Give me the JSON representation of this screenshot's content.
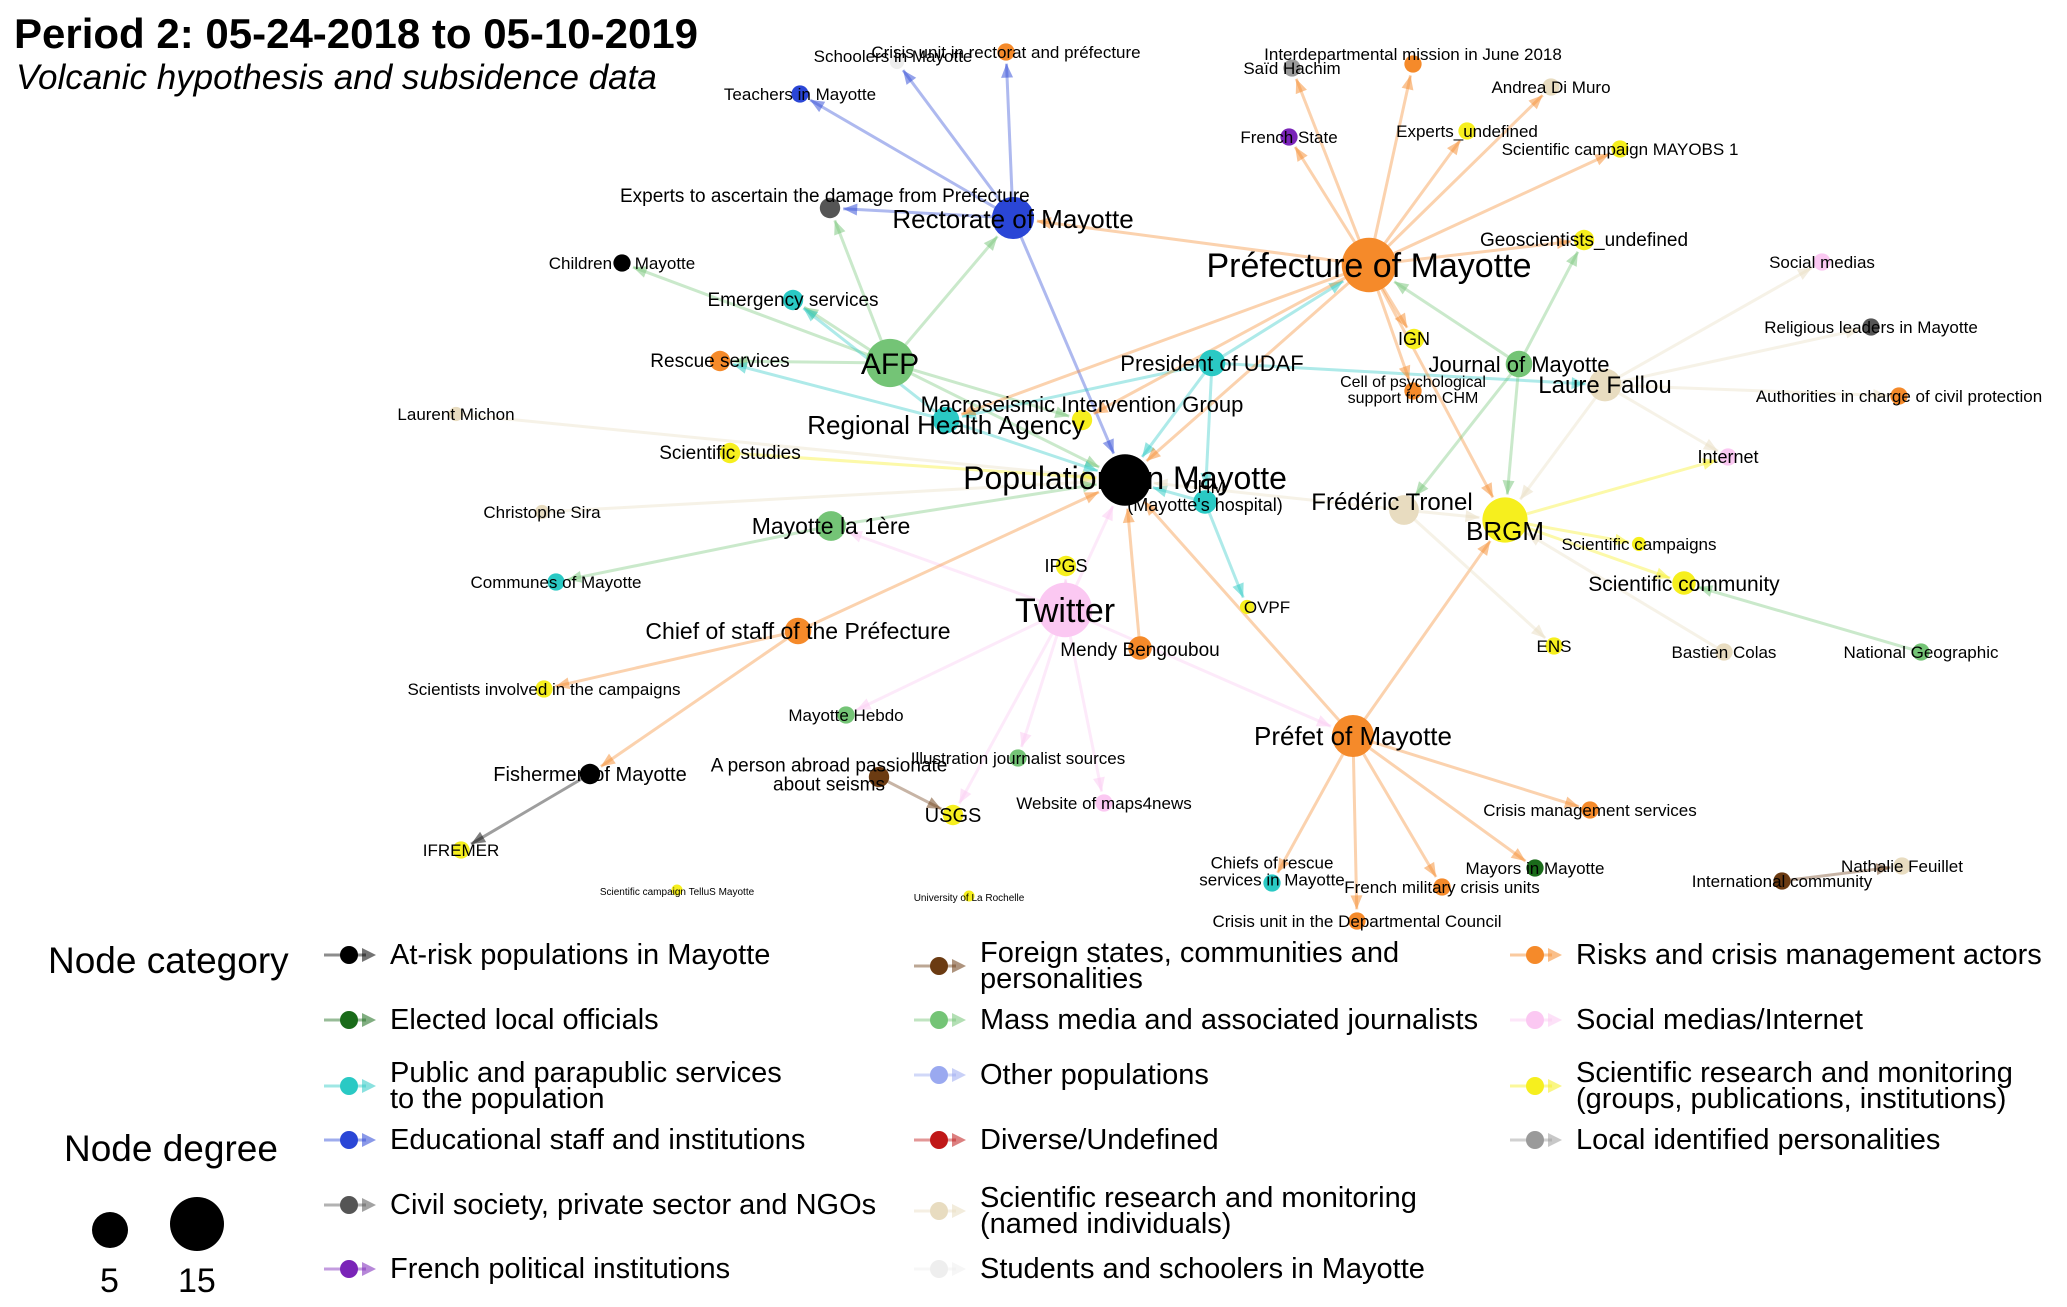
{
  "header": {
    "title": "Period 2: 05-24-2018 to 05-10-2019",
    "subtitle": "Volcanic hypothesis and subsidence data"
  },
  "categories": [
    {
      "id": "atrisk",
      "label": "At-risk populations in Mayotte",
      "color": "#000000"
    },
    {
      "id": "elected",
      "label": "Elected local officials",
      "color": "#1a6b1a"
    },
    {
      "id": "public",
      "label": "Public and parapublic services\nto the population",
      "color": "#2ac9c4"
    },
    {
      "id": "edu",
      "label": "Educational staff and institutions",
      "color": "#2a46d6"
    },
    {
      "id": "civil",
      "label": "Civil society, private sector and NGOs",
      "color": "#555555"
    },
    {
      "id": "polit",
      "label": "French political institutions",
      "color": "#7a24b8"
    },
    {
      "id": "foreign",
      "label": "Foreign states, communities and\npersonalities",
      "color": "#6b3b12"
    },
    {
      "id": "media",
      "label": "Mass media and associated journalists",
      "color": "#74c476"
    },
    {
      "id": "otherpop",
      "label": "Other populations",
      "color": "#9aa9f0"
    },
    {
      "id": "diverse",
      "label": "Diverse/Undefined",
      "color": "#c01818"
    },
    {
      "id": "sci_named",
      "label": "Scientific research and monitoring\n(named individuals)",
      "color": "#e8dcc0"
    },
    {
      "id": "students",
      "label": "Students and schoolers in Mayotte",
      "color": "#eeeeee"
    },
    {
      "id": "risk",
      "label": "Risks and crisis management actors",
      "color": "#f58a2a"
    },
    {
      "id": "social",
      "label": "Social medias/Internet",
      "color": "#fbc8f2"
    },
    {
      "id": "sci",
      "label": "Scientific research and monitoring\n(groups, publications, institutions)",
      "color": "#f6ef1e"
    },
    {
      "id": "personal",
      "label": "Local identified personalities",
      "color": "#9a9a9a"
    }
  ],
  "legend": {
    "category_title": "Node category",
    "degree_title": "Node degree",
    "degree_values": [
      "5",
      "15"
    ]
  },
  "network": {
    "nodes": [
      {
        "id": "rectorat",
        "label": "Rectorate of Mayotte",
        "category": "edu",
        "degree": 11
      },
      {
        "id": "schoolers",
        "label": "Schoolers in Mayotte",
        "category": "students",
        "degree": 2
      },
      {
        "id": "crisisrect",
        "label": "Crisis unit in rectorat and préfecture",
        "category": "risk",
        "degree": 3
      },
      {
        "id": "teachers",
        "label": "Teachers in Mayotte",
        "category": "edu",
        "degree": 3
      },
      {
        "id": "experts_dmg",
        "label": "Experts to ascertain the damage from Prefecture",
        "category": "civil",
        "degree": 4
      },
      {
        "id": "children",
        "label": "Children in Mayotte",
        "category": "atrisk",
        "degree": 3
      },
      {
        "id": "emergency",
        "label": "Emergency services",
        "category": "public",
        "degree": 4
      },
      {
        "id": "afp",
        "label": "AFP",
        "category": "media",
        "degree": 13
      },
      {
        "id": "rescue",
        "label": "Rescue services",
        "category": "risk",
        "degree": 4
      },
      {
        "id": "macro",
        "label": "Macroseismic Intervention Group",
        "category": "sci",
        "degree": 4
      },
      {
        "id": "ars",
        "label": "Regional Health Agency",
        "category": "public",
        "degree": 6
      },
      {
        "id": "michon",
        "label": "Laurent Michon",
        "category": "sci_named",
        "degree": 2
      },
      {
        "id": "scistudies",
        "label": "Scientific studies",
        "category": "sci",
        "degree": 4
      },
      {
        "id": "popmay",
        "label": "Populations in Mayotte",
        "category": "atrisk",
        "degree": 14
      },
      {
        "id": "sira",
        "label": "Christophe Sira",
        "category": "sci_named",
        "degree": 2
      },
      {
        "id": "mayotte1",
        "label": "Mayotte la 1ère",
        "category": "media",
        "degree": 7
      },
      {
        "id": "communes",
        "label": "Communes of Mayotte",
        "category": "public",
        "degree": 3
      },
      {
        "id": "ipgs",
        "label": "IPGS",
        "category": "sci",
        "degree": 4
      },
      {
        "id": "twitter",
        "label": "Twitter",
        "category": "social",
        "degree": 15
      },
      {
        "id": "chief",
        "label": "Chief of staff of the Préfecture",
        "category": "risk",
        "degree": 6
      },
      {
        "id": "scinvolved",
        "label": "Scientists involved in the campaigns",
        "category": "sci",
        "degree": 3
      },
      {
        "id": "hebdo",
        "label": "Mayotte Hebdo",
        "category": "media",
        "degree": 3
      },
      {
        "id": "illus",
        "label": "Illustration journalist sources",
        "category": "media",
        "degree": 3
      },
      {
        "id": "abroad",
        "label": "A person abroad passionate\nabout seisms",
        "category": "foreign",
        "degree": 4
      },
      {
        "id": "usgs",
        "label": "USGS",
        "category": "sci",
        "degree": 4
      },
      {
        "id": "maps4news",
        "label": "Website of maps4news",
        "category": "social",
        "degree": 3
      },
      {
        "id": "fishermen",
        "label": "Fishermen of Mayotte",
        "category": "atrisk",
        "degree": 4
      },
      {
        "id": "ifremer",
        "label": "IFREMER",
        "category": "sci",
        "degree": 3
      },
      {
        "id": "tellus",
        "label": "Scientific campaign TelluS Mayotte",
        "category": "sci",
        "degree": 1
      },
      {
        "id": "larochelle",
        "label": "University of La Rochelle",
        "category": "sci",
        "degree": 1
      },
      {
        "id": "udaf",
        "label": "President of UDAF",
        "category": "public",
        "degree": 6
      },
      {
        "id": "chm",
        "label": "CHM\n(Mayotte's hospital)",
        "category": "public",
        "degree": 5
      },
      {
        "id": "ovpf",
        "label": "OVPF",
        "category": "sci",
        "degree": 2
      },
      {
        "id": "mendy",
        "label": "Mendy Bengoubou",
        "category": "risk",
        "degree": 5
      },
      {
        "id": "prefet",
        "label": "Préfet of Mayotte",
        "category": "risk",
        "degree": 11
      },
      {
        "id": "prefecture",
        "label": "Préfecture of Mayotte",
        "category": "risk",
        "degree": 15
      },
      {
        "id": "hachim",
        "label": "Saïd Hachim",
        "category": "personal",
        "degree": 3
      },
      {
        "id": "interdep",
        "label": "Interdepartmental mission in June 2018",
        "category": "risk",
        "degree": 3
      },
      {
        "id": "dimuro",
        "label": "Andrea Di Muro",
        "category": "sci_named",
        "degree": 3
      },
      {
        "id": "frstate",
        "label": "French State",
        "category": "polit",
        "degree": 3
      },
      {
        "id": "expundef",
        "label": "Experts_undefined",
        "category": "sci",
        "degree": 3
      },
      {
        "id": "mayobs",
        "label": "Scientific campaign MAYOBS 1",
        "category": "sci",
        "degree": 3
      },
      {
        "id": "geosci",
        "label": "Geoscientists_undefined",
        "category": "sci",
        "degree": 4
      },
      {
        "id": "ign",
        "label": "IGN",
        "category": "sci",
        "degree": 4
      },
      {
        "id": "jmay",
        "label": "Journal of Mayotte",
        "category": "media",
        "degree": 6
      },
      {
        "id": "cellpsy",
        "label": "Cell of psychological\nsupport from CHM",
        "category": "risk",
        "degree": 3
      },
      {
        "id": "fallou",
        "label": "Laure Fallou",
        "category": "sci_named",
        "degree": 8
      },
      {
        "id": "socmed",
        "label": "Social medias",
        "category": "social",
        "degree": 3
      },
      {
        "id": "religious",
        "label": "Religious leaders in Mayotte",
        "category": "civil",
        "degree": 3
      },
      {
        "id": "authcp",
        "label": "Authorities in charge of civil protection",
        "category": "risk",
        "degree": 3
      },
      {
        "id": "internet",
        "label": "Internet",
        "category": "social",
        "degree": 3
      },
      {
        "id": "tronel",
        "label": "Frédéric Tronel",
        "category": "sci_named",
        "degree": 7
      },
      {
        "id": "brgm",
        "label": "BRGM",
        "category": "sci",
        "degree": 12
      },
      {
        "id": "scicamp",
        "label": "Scientific campaigns",
        "category": "sci",
        "degree": 2
      },
      {
        "id": "scicomm",
        "label": "Scientific community",
        "category": "sci",
        "degree": 5
      },
      {
        "id": "ens",
        "label": "ENS",
        "category": "sci",
        "degree": 3
      },
      {
        "id": "colas",
        "label": "Bastien Colas",
        "category": "sci_named",
        "degree": 3
      },
      {
        "id": "natgeo",
        "label": "National Geographic",
        "category": "media",
        "degree": 3
      },
      {
        "id": "crisismgmt",
        "label": "Crisis management services",
        "category": "risk",
        "degree": 3
      },
      {
        "id": "chiefsrescue",
        "label": "Chiefs of rescue\nservices in Mayotte",
        "category": "public",
        "degree": 3
      },
      {
        "id": "military",
        "label": "French military crisis units",
        "category": "risk",
        "degree": 3
      },
      {
        "id": "mayors",
        "label": "Mayors in Mayotte",
        "category": "elected",
        "degree": 3
      },
      {
        "id": "intlcomm",
        "label": "International community",
        "category": "foreign",
        "degree": 3
      },
      {
        "id": "feuillet",
        "label": "Nathalie Feuillet",
        "category": "sci_named",
        "degree": 3
      },
      {
        "id": "crisisdep",
        "label": "Crisis unit in the Departmental Council",
        "category": "risk",
        "degree": 3
      }
    ],
    "edges": [
      [
        "rectorat",
        "schoolers"
      ],
      [
        "rectorat",
        "crisisrect"
      ],
      [
        "rectorat",
        "teachers"
      ],
      [
        "rectorat",
        "experts_dmg"
      ],
      [
        "rectorat",
        "popmay"
      ],
      [
        "afp",
        "children"
      ],
      [
        "afp",
        "emergency"
      ],
      [
        "afp",
        "rescue"
      ],
      [
        "afp",
        "experts_dmg"
      ],
      [
        "afp",
        "rectorat"
      ],
      [
        "afp",
        "macro"
      ],
      [
        "afp",
        "popmay"
      ],
      [
        "ars",
        "emergency"
      ],
      [
        "ars",
        "rescue"
      ],
      [
        "ars",
        "popmay"
      ],
      [
        "michon",
        "popmay"
      ],
      [
        "scistudies",
        "popmay"
      ],
      [
        "sira",
        "popmay"
      ],
      [
        "mayotte1",
        "communes"
      ],
      [
        "mayotte1",
        "popmay"
      ],
      [
        "twitter",
        "ipgs"
      ],
      [
        "twitter",
        "hebdo"
      ],
      [
        "twitter",
        "illus"
      ],
      [
        "twitter",
        "maps4news"
      ],
      [
        "twitter",
        "usgs"
      ],
      [
        "twitter",
        "popmay"
      ],
      [
        "twitter",
        "prefet"
      ],
      [
        "twitter",
        "mayotte1"
      ],
      [
        "abroad",
        "usgs"
      ],
      [
        "chief",
        "scinvolved"
      ],
      [
        "chief",
        "fishermen"
      ],
      [
        "chief",
        "popmay"
      ],
      [
        "fishermen",
        "ifremer"
      ],
      [
        "udaf",
        "ars"
      ],
      [
        "udaf",
        "popmay"
      ],
      [
        "udaf",
        "chm"
      ],
      [
        "udaf",
        "prefecture"
      ],
      [
        "udaf",
        "fallou"
      ],
      [
        "chm",
        "popmay"
      ],
      [
        "chm",
        "ovpf"
      ],
      [
        "mendy",
        "popmay"
      ],
      [
        "prefet",
        "chiefsrescue"
      ],
      [
        "prefet",
        "military"
      ],
      [
        "prefet",
        "mayors"
      ],
      [
        "prefet",
        "crisismgmt"
      ],
      [
        "prefet",
        "crisisdep"
      ],
      [
        "prefet",
        "brgm"
      ],
      [
        "prefet",
        "popmay"
      ],
      [
        "prefecture",
        "hachim"
      ],
      [
        "prefecture",
        "interdep"
      ],
      [
        "prefecture",
        "dimuro"
      ],
      [
        "prefecture",
        "frstate"
      ],
      [
        "prefecture",
        "expundef"
      ],
      [
        "prefecture",
        "mayobs"
      ],
      [
        "prefecture",
        "geosci"
      ],
      [
        "prefecture",
        "ign"
      ],
      [
        "prefecture",
        "popmay"
      ],
      [
        "prefecture",
        "brgm"
      ],
      [
        "prefecture",
        "rectorat"
      ],
      [
        "prefecture",
        "ars"
      ],
      [
        "prefecture",
        "macro"
      ],
      [
        "prefecture",
        "cellpsy"
      ],
      [
        "jmay",
        "geosci"
      ],
      [
        "jmay",
        "prefecture"
      ],
      [
        "jmay",
        "brgm"
      ],
      [
        "jmay",
        "tronel"
      ],
      [
        "fallou",
        "socmed"
      ],
      [
        "fallou",
        "religious"
      ],
      [
        "fallou",
        "authcp"
      ],
      [
        "fallou",
        "internet"
      ],
      [
        "fallou",
        "brgm"
      ],
      [
        "tronel",
        "popmay"
      ],
      [
        "tronel",
        "ens"
      ],
      [
        "tronel",
        "brgm"
      ],
      [
        "brgm",
        "scicamp"
      ],
      [
        "brgm",
        "scicomm"
      ],
      [
        "brgm",
        "internet"
      ],
      [
        "natgeo",
        "scicomm"
      ],
      [
        "colas",
        "brgm"
      ],
      [
        "intlcomm",
        "feuillet"
      ]
    ]
  }
}
